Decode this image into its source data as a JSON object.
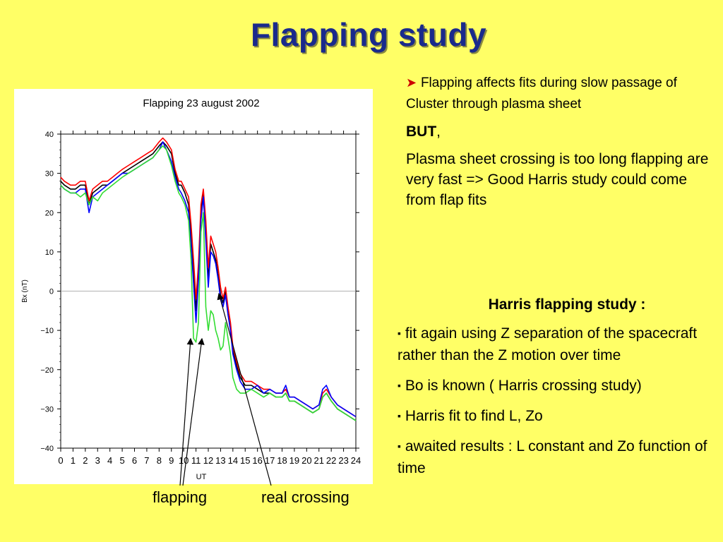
{
  "slide": {
    "title": "Flapping study",
    "right_top": {
      "bullet_text": "Flapping affects fits during slow passage of Cluster through plasma sheet",
      "but_label": "BUT",
      "but_comma": ",",
      "paragraph": "Plasma sheet crossing is too long flapping are very fast => Good Harris study could come from flap fits"
    },
    "right_bottom": {
      "heading": "Harris flapping study :",
      "items": [
        "fit again using Z separation of the spacecraft rather than the Z motion over time",
        "Bo is known ( Harris crossing study)",
        "Harris fit to find L, Zo",
        "awaited results : L constant and Zo function of time"
      ]
    },
    "captions": {
      "flapping": "flapping",
      "real_crossing": "real crossing"
    },
    "colors": {
      "background": "#ffff66",
      "title": "#1a2a8c",
      "bullet_arrow": "#cc0000"
    }
  },
  "chart_data": {
    "type": "line",
    "title": "Flapping 23 august 2002",
    "xlabel": "UT",
    "ylabel": "Bx (nT)",
    "xlim": [
      0,
      24
    ],
    "ylim": [
      -40,
      40
    ],
    "x_ticks": [
      0,
      1,
      2,
      3,
      4,
      5,
      6,
      7,
      8,
      9,
      10,
      11,
      12,
      13,
      14,
      15,
      16,
      17,
      18,
      19,
      20,
      21,
      22,
      23,
      24
    ],
    "y_ticks": [
      40,
      30,
      20,
      10,
      0,
      -10,
      -20,
      -30,
      -40
    ],
    "y_tick_labels": [
      "40",
      "30",
      "20",
      "10",
      "0",
      "−10",
      "−20",
      "−30",
      "−40"
    ],
    "zero_line": true,
    "grid": false,
    "series": [
      {
        "color": "#000000",
        "x": [
          0,
          0.3,
          0.8,
          1.2,
          1.6,
          2,
          2.3,
          2.6,
          3,
          3.4,
          3.8,
          4.2,
          4.6,
          5,
          5.5,
          6,
          6.5,
          7,
          7.5,
          8,
          8.3,
          8.6,
          9,
          9.3,
          9.6,
          9.8,
          10.1,
          10.4,
          10.6,
          10.8,
          11,
          11.2,
          11.4,
          11.6,
          11.8,
          12,
          12.2,
          12.4,
          12.6,
          12.8,
          13,
          13.2,
          13.4,
          13.6,
          13.8,
          14,
          14.3,
          14.6,
          15,
          15.5,
          16,
          16.5,
          17,
          17.5,
          18,
          18.3,
          18.6,
          19,
          19.5,
          20,
          20.5,
          21,
          21.3,
          21.6,
          22,
          22.5,
          23,
          23.5,
          24
        ],
        "y": [
          28,
          27,
          26,
          26,
          27,
          27,
          22,
          25,
          26,
          27,
          27,
          28,
          29,
          30,
          31,
          32,
          33,
          34,
          35,
          37,
          38,
          37,
          35,
          30,
          27,
          27,
          25,
          22,
          14,
          5,
          -5,
          5,
          20,
          25,
          15,
          3,
          12,
          10,
          8,
          4,
          -1,
          -3,
          0,
          -5,
          -9,
          -15,
          -19,
          -22,
          -24,
          -24,
          -25,
          -26,
          -26,
          -27,
          -27,
          -26,
          -28,
          -28,
          -29,
          -30,
          -31,
          -30,
          -27,
          -26,
          -28,
          -30,
          -31,
          -32,
          -33
        ]
      },
      {
        "color": "#ff0000",
        "x": [
          0,
          0.3,
          0.8,
          1.2,
          1.6,
          2,
          2.3,
          2.6,
          3,
          3.4,
          3.8,
          4.2,
          4.6,
          5,
          5.5,
          6,
          6.5,
          7,
          7.5,
          8,
          8.3,
          8.6,
          9,
          9.3,
          9.6,
          9.8,
          10.1,
          10.4,
          10.6,
          10.8,
          11,
          11.2,
          11.4,
          11.6,
          11.8,
          12,
          12.2,
          12.4,
          12.6,
          12.8,
          13,
          13.2,
          13.4,
          13.6,
          13.8,
          14,
          14.3,
          14.6,
          15,
          15.5,
          16,
          16.5,
          17,
          17.5,
          18,
          18.3,
          18.6,
          19,
          19.5,
          20,
          20.5,
          21,
          21.3,
          21.6,
          22,
          22.5,
          23,
          23.5,
          24
        ],
        "y": [
          29,
          28,
          27,
          27,
          28,
          28,
          23,
          26,
          27,
          28,
          28,
          29,
          30,
          31,
          32,
          33,
          34,
          35,
          36,
          38,
          39,
          38,
          36,
          31,
          28,
          28,
          26,
          24,
          17,
          8,
          -2,
          7,
          22,
          26,
          18,
          6,
          14,
          12,
          10,
          6,
          1,
          -2,
          1,
          -4,
          -8,
          -14,
          -18,
          -21,
          -23,
          -23,
          -24,
          -25,
          -25,
          -26,
          -26,
          -25,
          -27,
          -27,
          -28,
          -29,
          -30,
          -29,
          -26,
          -25,
          -27,
          -29,
          -30,
          -31,
          -32
        ]
      },
      {
        "color": "#0000ff",
        "x": [
          0,
          0.3,
          0.8,
          1.2,
          1.6,
          2,
          2.3,
          2.6,
          3,
          3.4,
          3.8,
          4.2,
          4.6,
          5,
          5.5,
          6,
          6.5,
          7,
          7.5,
          8,
          8.3,
          8.6,
          9,
          9.3,
          9.6,
          9.8,
          10.1,
          10.4,
          10.6,
          10.8,
          11,
          11.2,
          11.4,
          11.6,
          11.8,
          12,
          12.2,
          12.4,
          12.6,
          12.8,
          13,
          13.2,
          13.4,
          13.6,
          13.8,
          14,
          14.3,
          14.6,
          15,
          15.5,
          16,
          16.5,
          17,
          17.5,
          18,
          18.3,
          18.6,
          19,
          19.5,
          20,
          20.5,
          21,
          21.3,
          21.6,
          22,
          22.5,
          23,
          23.5,
          24
        ],
        "y": [
          27,
          26,
          25,
          25,
          26,
          26,
          20,
          24,
          25,
          26,
          27,
          28,
          29,
          30,
          30,
          31,
          32,
          33,
          34,
          36,
          38,
          36,
          33,
          29,
          26,
          25,
          23,
          20,
          12,
          2,
          -8,
          3,
          18,
          24,
          13,
          1,
          10,
          9,
          7,
          3,
          -2,
          -4,
          -1,
          -6,
          -10,
          -16,
          -20,
          -23,
          -25,
          -25,
          -24,
          -26,
          -25,
          -26,
          -26,
          -24,
          -27,
          -27,
          -28,
          -29,
          -30,
          -29,
          -25,
          -24,
          -27,
          -29,
          -30,
          -31,
          -32
        ]
      },
      {
        "color": "#33dd33",
        "x": [
          0,
          0.3,
          0.8,
          1.2,
          1.6,
          2,
          2.3,
          2.6,
          3,
          3.4,
          3.8,
          4.2,
          4.6,
          5,
          5.5,
          6,
          6.5,
          7,
          7.5,
          8,
          8.3,
          8.6,
          9,
          9.3,
          9.6,
          9.8,
          10.1,
          10.4,
          10.6,
          10.8,
          11,
          11.2,
          11.4,
          11.6,
          11.8,
          12,
          12.2,
          12.4,
          12.6,
          12.8,
          13,
          13.2,
          13.4,
          13.6,
          13.8,
          14,
          14.3,
          14.6,
          15,
          15.5,
          16,
          16.5,
          17,
          17.5,
          18,
          18.3,
          18.6,
          19,
          19.5,
          20,
          20.5,
          21,
          21.3,
          21.6,
          22,
          22.5,
          23,
          23.5,
          24
        ],
        "y": [
          27,
          26,
          25,
          25,
          24,
          25,
          22,
          24,
          23,
          25,
          26,
          27,
          28,
          29,
          30,
          31,
          32,
          33,
          34,
          36,
          37,
          36,
          32,
          28,
          25,
          24,
          22,
          18,
          8,
          -12,
          -13,
          -8,
          15,
          20,
          -4,
          -10,
          -5,
          -6,
          -10,
          -12,
          -15,
          -14,
          -8,
          -12,
          -16,
          -22,
          -25,
          -26,
          -26,
          -25,
          -26,
          -27,
          -26,
          -27,
          -27,
          -26,
          -28,
          -28,
          -29,
          -30,
          -31,
          -30,
          -27,
          -26,
          -28,
          -30,
          -31,
          -32,
          -33
        ]
      }
    ]
  }
}
